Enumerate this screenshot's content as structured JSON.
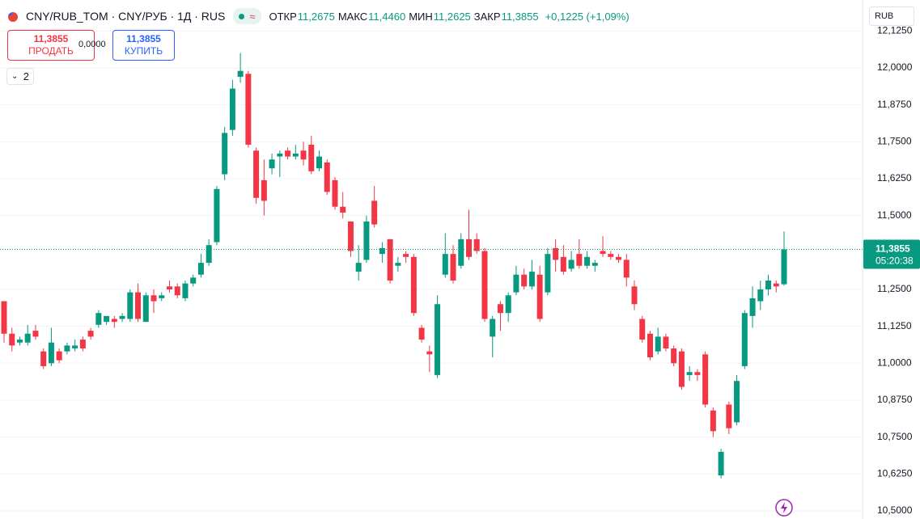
{
  "header": {
    "title": "CNY/RUB_TOM · CNY/РУБ · 1Д · RUS",
    "approx": "≈",
    "ohlc": [
      {
        "label": "ОТКР",
        "value": "11,2675"
      },
      {
        "label": "МАКС",
        "value": "11,4460"
      },
      {
        "label": "МИН",
        "value": "11,2625"
      },
      {
        "label": "ЗАКР",
        "value": "11,3855"
      }
    ],
    "change": "+0,1225 (+1,09%)"
  },
  "trade": {
    "sell_price": "11,3855",
    "sell_label": "ПРОДАТЬ",
    "spread": "0,0000",
    "buy_price": "11,3855",
    "buy_label": "КУПИТЬ"
  },
  "indicators_count": "2",
  "currency": "RUB",
  "chart_data": {
    "type": "candlestick",
    "up_color": "#089981",
    "down_color": "#f23645",
    "grid": true,
    "ylim": [
      10.4725,
      12.23
    ],
    "yticks": [
      {
        "value": 12.125,
        "label": "12,1250"
      },
      {
        "value": 12,
        "label": "12,0000"
      },
      {
        "value": 11.875,
        "label": "11,8750"
      },
      {
        "value": 11.75,
        "label": "11,7500"
      },
      {
        "value": 11.625,
        "label": "11,6250"
      },
      {
        "value": 11.5,
        "label": "11,5000"
      },
      {
        "value": 11.25,
        "label": "11,2500"
      },
      {
        "value": 11.125,
        "label": "11,1250"
      },
      {
        "value": 11,
        "label": "11,0000"
      },
      {
        "value": 10.875,
        "label": "10,8750"
      },
      {
        "value": 10.75,
        "label": "10,7500"
      },
      {
        "value": 10.625,
        "label": "10,6250"
      },
      {
        "value": 10.5,
        "label": "10,5000"
      }
    ],
    "last_price_label": "11,3855",
    "countdown": "05:20:38",
    "open": [
      11.21,
      11.1,
      11.07,
      11.07,
      11.11,
      11.04,
      11.0,
      11.04,
      11.04,
      11.05,
      11.08,
      11.11,
      11.13,
      11.14,
      11.15,
      11.15,
      11.15,
      11.24,
      11.14,
      11.23,
      11.22,
      11.26,
      11.26,
      11.22,
      11.27,
      11.3,
      11.34,
      11.41,
      11.64,
      11.79,
      11.97,
      11.98,
      11.72,
      11.62,
      11.66,
      11.7,
      11.72,
      11.7,
      11.72,
      11.74,
      11.66,
      11.68,
      11.62,
      11.53,
      11.48,
      11.31,
      11.35,
      11.55,
      11.37,
      11.42,
      11.33,
      11.37,
      11.36,
      11.12,
      11.04,
      10.96,
      11.3,
      11.37,
      11.33,
      11.42,
      11.42,
      11.38,
      11.09,
      11.2,
      11.17,
      11.24,
      11.3,
      11.26,
      11.3,
      11.24,
      11.39,
      11.36,
      11.32,
      11.37,
      11.33,
      11.33,
      11.38,
      11.37,
      11.36,
      11.35,
      11.26,
      11.15,
      11.1,
      11.04,
      11.09,
      11.05,
      11.04,
      10.96,
      10.97,
      11.03,
      10.84,
      10.62,
      10.86,
      10.8,
      10.99,
      11.16,
      11.21,
      11.25,
      11.27,
      11.2675
    ],
    "high": [
      11.21,
      11.12,
      11.09,
      11.13,
      11.13,
      11.05,
      11.12,
      11.05,
      11.07,
      11.08,
      11.09,
      11.12,
      11.18,
      11.16,
      11.16,
      11.17,
      11.25,
      11.27,
      11.24,
      11.25,
      11.24,
      11.28,
      11.27,
      11.28,
      11.3,
      11.37,
      11.42,
      11.6,
      11.8,
      11.96,
      12.05,
      11.99,
      11.73,
      11.69,
      11.71,
      11.72,
      11.73,
      11.74,
      11.75,
      11.77,
      11.72,
      11.69,
      11.63,
      11.58,
      11.48,
      11.4,
      11.5,
      11.6,
      11.41,
      11.42,
      11.36,
      11.38,
      11.37,
      11.13,
      11.06,
      11.23,
      11.44,
      11.4,
      11.44,
      11.52,
      11.44,
      11.39,
      11.16,
      11.21,
      11.24,
      11.33,
      11.32,
      11.35,
      11.33,
      11.39,
      11.42,
      11.4,
      11.38,
      11.42,
      11.38,
      11.35,
      11.43,
      11.38,
      11.37,
      11.37,
      11.28,
      11.16,
      11.11,
      11.12,
      11.1,
      11.06,
      11.05,
      10.99,
      10.98,
      11.04,
      10.85,
      10.71,
      10.87,
      10.96,
      11.18,
      11.26,
      11.28,
      11.3,
      11.28,
      11.446
    ],
    "low": [
      11.07,
      11.04,
      11.06,
      11.06,
      11.08,
      10.98,
      10.99,
      11.0,
      11.03,
      11.04,
      11.04,
      11.08,
      11.12,
      11.13,
      11.12,
      11.14,
      11.14,
      11.14,
      11.14,
      11.17,
      11.21,
      11.24,
      11.22,
      11.21,
      11.26,
      11.29,
      11.33,
      11.4,
      11.62,
      11.77,
      11.95,
      11.73,
      11.54,
      11.5,
      11.64,
      11.63,
      11.69,
      11.69,
      11.67,
      11.64,
      11.65,
      11.57,
      11.52,
      11.49,
      11.36,
      11.28,
      11.34,
      11.46,
      11.34,
      11.27,
      11.31,
      11.34,
      11.16,
      11.07,
      10.97,
      10.95,
      11.29,
      11.27,
      11.32,
      11.35,
      11.37,
      11.14,
      11.02,
      11.11,
      11.14,
      11.23,
      11.25,
      11.25,
      11.14,
      11.23,
      11.31,
      11.3,
      11.31,
      11.32,
      11.32,
      11.31,
      11.36,
      11.35,
      11.34,
      11.26,
      11.18,
      11.07,
      11.01,
      11.03,
      11.04,
      10.99,
      10.91,
      10.94,
      10.94,
      10.85,
      10.75,
      10.61,
      10.76,
      10.79,
      10.98,
      11.12,
      11.18,
      11.23,
      11.24,
      11.2625
    ],
    "close": [
      11.1,
      11.06,
      11.08,
      11.1,
      11.09,
      10.99,
      11.07,
      11.01,
      11.06,
      11.06,
      11.05,
      11.09,
      11.17,
      11.16,
      11.14,
      11.16,
      11.24,
      11.15,
      11.23,
      11.21,
      11.23,
      11.25,
      11.23,
      11.27,
      11.29,
      11.34,
      11.4,
      11.59,
      11.78,
      11.93,
      11.99,
      11.74,
      11.56,
      11.55,
      11.69,
      11.71,
      11.7,
      11.71,
      11.69,
      11.65,
      11.7,
      11.58,
      11.53,
      11.51,
      11.38,
      11.34,
      11.48,
      11.47,
      11.39,
      11.28,
      11.34,
      11.36,
      11.17,
      11.08,
      11.03,
      11.2,
      11.37,
      11.28,
      11.42,
      11.36,
      11.38,
      11.15,
      11.15,
      11.17,
      11.23,
      11.3,
      11.26,
      11.31,
      11.15,
      11.37,
      11.35,
      11.31,
      11.35,
      11.33,
      11.36,
      11.34,
      11.37,
      11.36,
      11.35,
      11.29,
      11.2,
      11.08,
      11.02,
      11.09,
      11.05,
      11.0,
      10.92,
      10.97,
      10.96,
      10.86,
      10.77,
      10.7,
      10.78,
      10.94,
      11.17,
      11.22,
      11.25,
      11.28,
      11.26,
      11.3855
    ]
  }
}
